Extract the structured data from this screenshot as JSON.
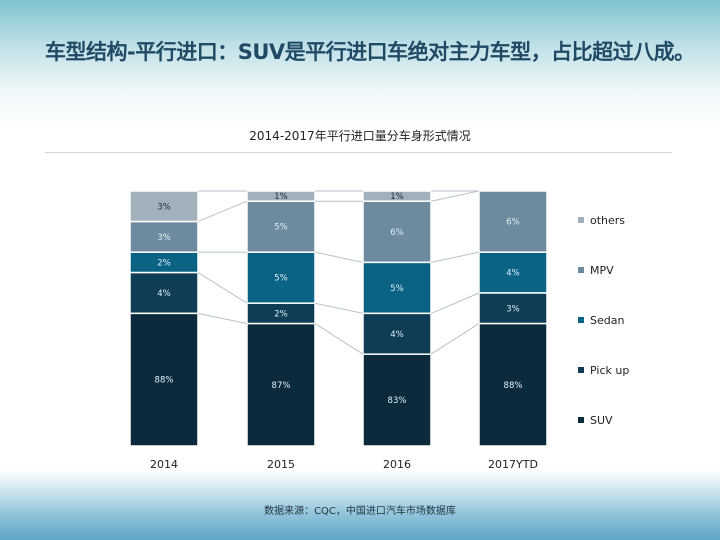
{
  "title": "车型结构-平行进口：SUV是平行进口车绝对主力车型，占比超过八成。",
  "source": "数据来源：CQC，中国进口汽车市场数据库",
  "chart_data": {
    "type": "bar",
    "stacked": true,
    "title": "2014-2017年平行进口量分车身形式情况",
    "categories": [
      "2014",
      "2015",
      "2016",
      "2017YTD"
    ],
    "series": [
      {
        "name": "SUV",
        "color": "#0b2a3b",
        "values": [
          88,
          87,
          83,
          88
        ]
      },
      {
        "name": "Pick up",
        "color": "#0e3d55",
        "values": [
          4,
          2,
          4,
          3
        ]
      },
      {
        "name": "Sedan",
        "color": "#0a6385",
        "values": [
          2,
          5,
          5,
          4
        ]
      },
      {
        "name": "MPV",
        "color": "#6d8a9e",
        "values": [
          3,
          5,
          6,
          6
        ]
      },
      {
        "name": "others",
        "color": "#a2b0bb",
        "values": [
          3,
          1,
          1,
          0
        ]
      }
    ],
    "unit": "%",
    "legend": "right",
    "grid": false
  }
}
